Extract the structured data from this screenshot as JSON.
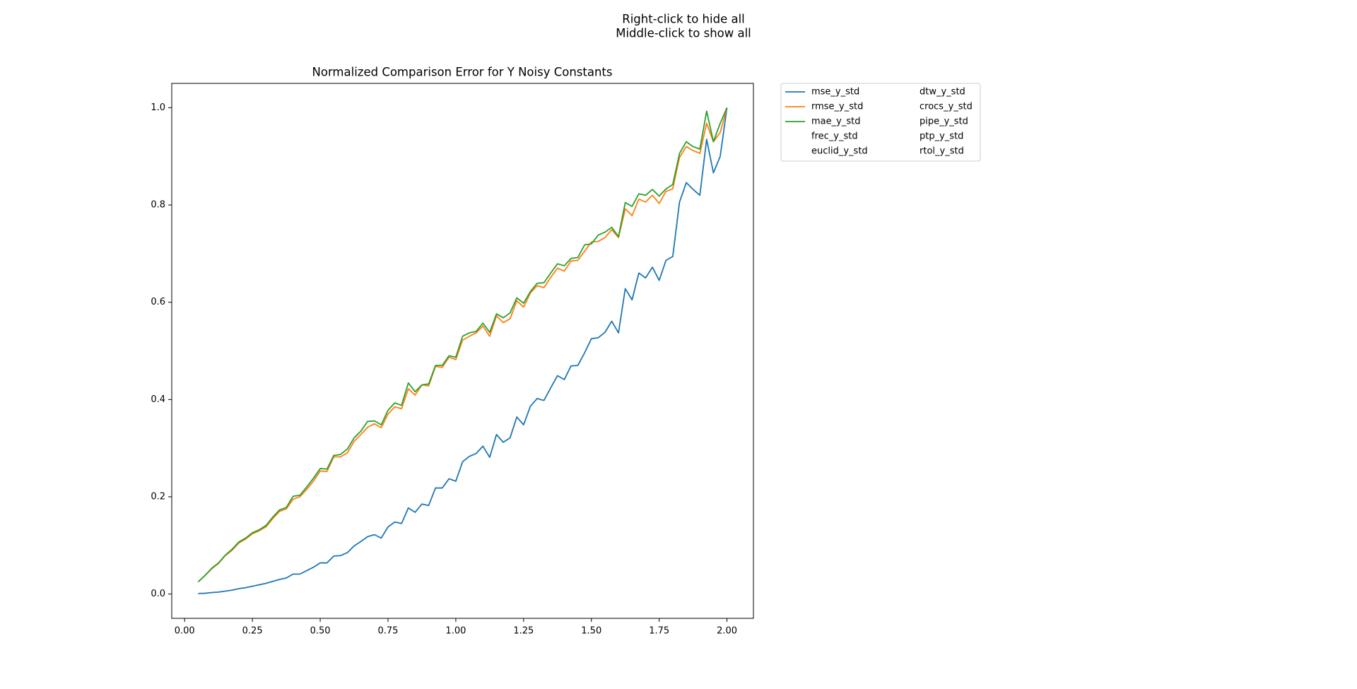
{
  "chart_data": {
    "type": "line",
    "title": "Normalized Comparison Error for Y Noisy Constants",
    "annotations": [
      "Right-click to hide all",
      "Middle-click to show all"
    ],
    "x": [
      0.05,
      0.075,
      0.1,
      0.125,
      0.15,
      0.175,
      0.2,
      0.225,
      0.25,
      0.275,
      0.3,
      0.325,
      0.35,
      0.375,
      0.4,
      0.425,
      0.45,
      0.475,
      0.5,
      0.525,
      0.55,
      0.575,
      0.6,
      0.625,
      0.65,
      0.675,
      0.7,
      0.725,
      0.75,
      0.775,
      0.8,
      0.825,
      0.85,
      0.875,
      0.9,
      0.925,
      0.95,
      0.975,
      1.0,
      1.025,
      1.05,
      1.075,
      1.1,
      1.125,
      1.15,
      1.175,
      1.2,
      1.225,
      1.25,
      1.275,
      1.3,
      1.325,
      1.35,
      1.375,
      1.4,
      1.425,
      1.45,
      1.475,
      1.5,
      1.525,
      1.55,
      1.575,
      1.6,
      1.625,
      1.65,
      1.675,
      1.7,
      1.725,
      1.75,
      1.775,
      1.8,
      1.825,
      1.85,
      1.875,
      1.9,
      1.925,
      1.95,
      1.975,
      2.0
    ],
    "series": [
      {
        "name": "mse_y_std",
        "color": "#1f77b4",
        "visible": true,
        "values": [
          0.001,
          0.0015,
          0.003,
          0.004,
          0.006,
          0.008,
          0.011,
          0.013,
          0.016,
          0.019,
          0.022,
          0.026,
          0.03,
          0.033,
          0.041,
          0.041,
          0.048,
          0.055,
          0.064,
          0.064,
          0.078,
          0.079,
          0.085,
          0.099,
          0.108,
          0.118,
          0.122,
          0.115,
          0.138,
          0.148,
          0.145,
          0.177,
          0.168,
          0.185,
          0.182,
          0.218,
          0.218,
          0.237,
          0.232,
          0.272,
          0.283,
          0.289,
          0.304,
          0.281,
          0.328,
          0.312,
          0.321,
          0.364,
          0.348,
          0.386,
          0.402,
          0.398,
          0.424,
          0.449,
          0.441,
          0.469,
          0.47,
          0.496,
          0.525,
          0.527,
          0.538,
          0.561,
          0.537,
          0.628,
          0.605,
          0.66,
          0.65,
          0.672,
          0.645,
          0.686,
          0.694,
          0.806,
          0.846,
          0.832,
          0.82,
          0.935,
          0.866,
          0.9,
          1.0
        ]
      },
      {
        "name": "rmse_y_std",
        "color": "#ff7f0e",
        "visible": true,
        "values": [
          0.025,
          0.038,
          0.052,
          0.063,
          0.079,
          0.09,
          0.105,
          0.113,
          0.124,
          0.13,
          0.138,
          0.155,
          0.17,
          0.175,
          0.195,
          0.2,
          0.215,
          0.232,
          0.253,
          0.252,
          0.282,
          0.282,
          0.29,
          0.314,
          0.328,
          0.343,
          0.35,
          0.342,
          0.37,
          0.385,
          0.381,
          0.422,
          0.409,
          0.43,
          0.428,
          0.468,
          0.466,
          0.487,
          0.482,
          0.522,
          0.53,
          0.537,
          0.551,
          0.53,
          0.572,
          0.558,
          0.566,
          0.603,
          0.59,
          0.619,
          0.634,
          0.63,
          0.651,
          0.67,
          0.664,
          0.685,
          0.686,
          0.705,
          0.724,
          0.725,
          0.733,
          0.749,
          0.733,
          0.792,
          0.778,
          0.812,
          0.806,
          0.82,
          0.803,
          0.828,
          0.833,
          0.898,
          0.92,
          0.912,
          0.906,
          0.968,
          0.93,
          0.949,
          1.0
        ]
      },
      {
        "name": "mae_y_std",
        "color": "#2ca02c",
        "visible": true,
        "values": [
          0.025,
          0.038,
          0.053,
          0.064,
          0.08,
          0.092,
          0.107,
          0.115,
          0.126,
          0.132,
          0.141,
          0.158,
          0.173,
          0.178,
          0.201,
          0.203,
          0.22,
          0.238,
          0.258,
          0.257,
          0.285,
          0.287,
          0.298,
          0.321,
          0.335,
          0.355,
          0.356,
          0.348,
          0.378,
          0.393,
          0.388,
          0.434,
          0.416,
          0.43,
          0.432,
          0.47,
          0.47,
          0.49,
          0.487,
          0.53,
          0.537,
          0.54,
          0.557,
          0.538,
          0.576,
          0.568,
          0.578,
          0.609,
          0.598,
          0.622,
          0.639,
          0.64,
          0.66,
          0.679,
          0.675,
          0.69,
          0.692,
          0.718,
          0.72,
          0.738,
          0.744,
          0.754,
          0.735,
          0.805,
          0.797,
          0.823,
          0.82,
          0.832,
          0.818,
          0.833,
          0.842,
          0.906,
          0.93,
          0.92,
          0.915,
          0.993,
          0.93,
          0.968,
          1.0
        ]
      },
      {
        "name": "frec_y_std",
        "visible": false
      },
      {
        "name": "euclid_y_std",
        "visible": false
      },
      {
        "name": "dtw_y_std",
        "visible": false
      },
      {
        "name": "crocs_y_std",
        "visible": false
      },
      {
        "name": "pipe_y_std",
        "visible": false
      },
      {
        "name": "ptp_y_std",
        "visible": false
      },
      {
        "name": "rtol_y_std",
        "visible": false
      }
    ],
    "xlim": [
      -0.0475,
      2.0975
    ],
    "ylim": [
      -0.05,
      1.05
    ],
    "xticks": [
      {
        "value": 0,
        "label": "0.00"
      },
      {
        "value": 0.25,
        "label": "0.25"
      },
      {
        "value": 0.5,
        "label": "0.50"
      },
      {
        "value": 0.75,
        "label": "0.75"
      },
      {
        "value": 1,
        "label": "1.00"
      },
      {
        "value": 1.25,
        "label": "1.25"
      },
      {
        "value": 1.5,
        "label": "1.50"
      },
      {
        "value": 1.75,
        "label": "1.75"
      },
      {
        "value": 2,
        "label": "2.00"
      }
    ],
    "yticks": [
      {
        "value": 0,
        "label": "0.0"
      },
      {
        "value": 0.2,
        "label": "0.2"
      },
      {
        "value": 0.4,
        "label": "0.4"
      },
      {
        "value": 0.6,
        "label": "0.6"
      },
      {
        "value": 0.8,
        "label": "0.8"
      },
      {
        "value": 1,
        "label": "1.0"
      }
    ],
    "grid": false,
    "legend": "outside-upper-right"
  }
}
